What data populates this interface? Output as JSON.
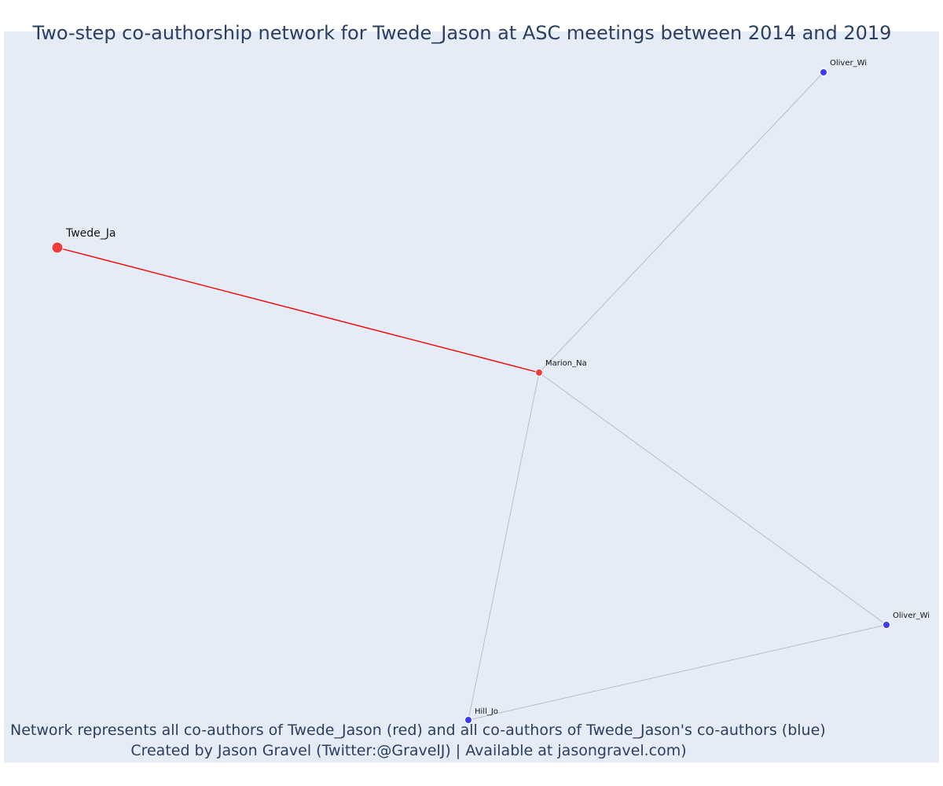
{
  "title": "Two-step co-authorship network for Twede_Jason at ASC meetings between 2014 and 2019",
  "caption": {
    "line1": "Network represents all co-authors of Twede_Jason (red) and all co-authors of Twede_Jason's co-authors (blue)",
    "line2": "Created by Jason Gravel (Twitter:@GravelJ) | Available at jasongravel.com)"
  },
  "colors": {
    "background": "#e5ecf6",
    "ego_edge": "#ff0000",
    "other_edge": "#b8bccb",
    "red_node": "#ef3b3b",
    "blue_node": "#3b3be8",
    "text": "#2a3f5f"
  },
  "network": {
    "nodes": [
      {
        "id": "twede",
        "label": "Twede_Ja",
        "group": "red",
        "role": "ego"
      },
      {
        "id": "marion",
        "label": "Marion_Na",
        "group": "red",
        "role": "coauthor"
      },
      {
        "id": "oliver1",
        "label": "Oliver_Wi",
        "group": "blue",
        "role": "second-step"
      },
      {
        "id": "oliver2",
        "label": "Oliver_Wi",
        "group": "blue",
        "role": "second-step"
      },
      {
        "id": "hill",
        "label": "Hill_Jo",
        "group": "blue",
        "role": "second-step"
      }
    ],
    "edges": [
      {
        "source": "twede",
        "target": "marion",
        "type": "ego"
      },
      {
        "source": "marion",
        "target": "oliver1",
        "type": "other"
      },
      {
        "source": "marion",
        "target": "oliver2",
        "type": "other"
      },
      {
        "source": "marion",
        "target": "hill",
        "type": "other"
      },
      {
        "source": "hill",
        "target": "oliver2",
        "type": "other"
      }
    ]
  }
}
